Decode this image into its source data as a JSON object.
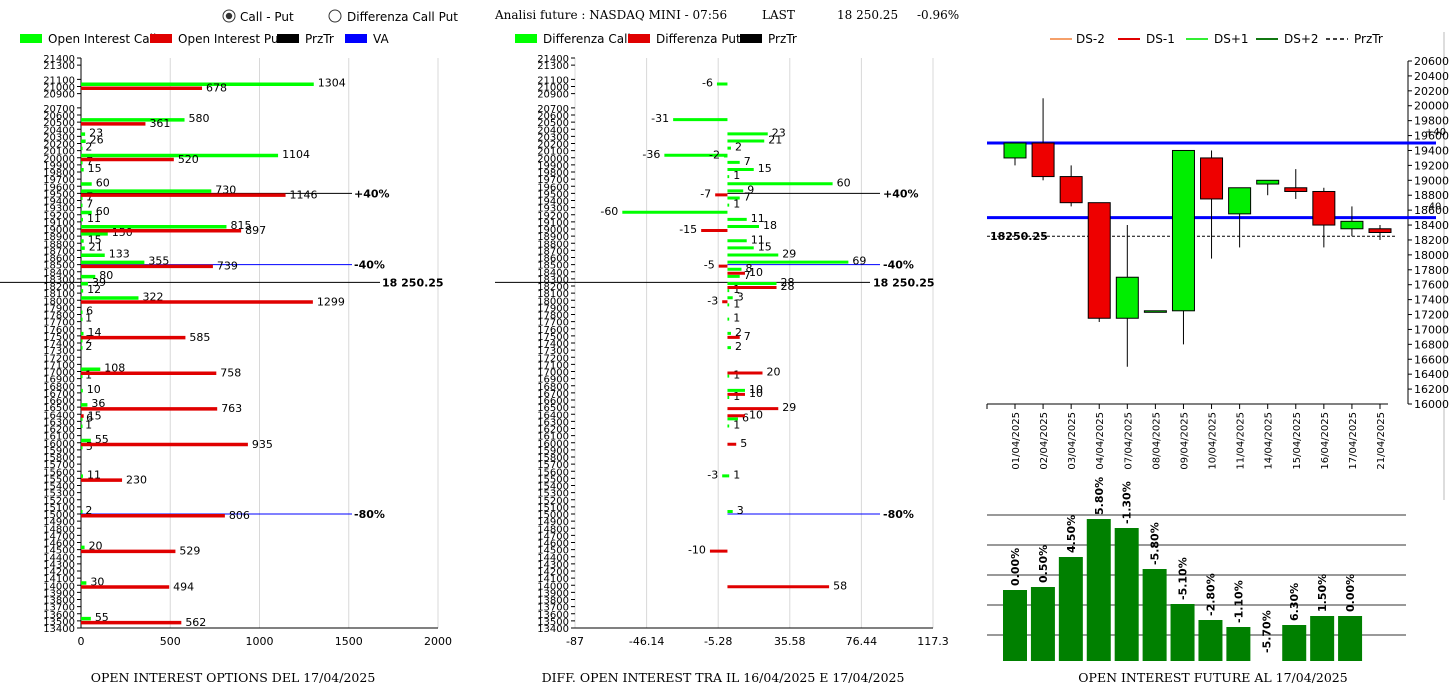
{
  "header": {
    "radio_call_put": "Call - Put",
    "radio_diff": "Differenza Call Put",
    "selected_mode": "Call - Put",
    "analysis_title": "Analisi future : NASDAQ MINI - 07:56",
    "last_label": "LAST",
    "last_value": "18 250.25",
    "last_change": "-0.96%"
  },
  "colors": {
    "call": "#00ff00",
    "put": "#e00000",
    "prztr": "#000000",
    "va": "#0000ff",
    "green_bar": "#008000",
    "ds_minus2": "#f5a06a",
    "ds_minus1": "#e00000",
    "ds_plus1": "#33ee33",
    "ds_plus2": "#117711"
  },
  "panels": [
    {
      "legend": [
        "Open Interest Call",
        "Open Interest Put",
        "PrzTr",
        "VA"
      ],
      "footer": "OPEN INTEREST OPTIONS DEL 17/04/2025"
    },
    {
      "legend": [
        "Differenza Call",
        "Differenza Put",
        "PrzTr"
      ],
      "footer": "DIFF. OPEN INTEREST TRA IL 16/04/2025 E 17/04/2025"
    },
    {
      "legend": [
        "DS-2",
        "DS-1",
        "DS+1",
        "DS+2",
        "PrzTr"
      ],
      "footer": "OPEN INTEREST FUTURE AL 17/04/2025"
    }
  ],
  "chart_data": [
    {
      "type": "bar",
      "orientation": "horizontal",
      "strike_ticks": [
        21400,
        21300,
        21100,
        21000,
        20900,
        20700,
        20600,
        20500,
        20400,
        20300,
        20200,
        20100,
        20000,
        19900,
        19800,
        19700,
        19600,
        19500,
        19400,
        19300,
        19200,
        19100,
        19000,
        18900,
        18800,
        18700,
        18600,
        18500,
        18400,
        18300,
        18200,
        18100,
        18000,
        17900,
        17800,
        17700,
        17600,
        17500,
        17400,
        17300,
        17200,
        17100,
        17000,
        16900,
        16800,
        16700,
        16600,
        16500,
        16400,
        16300,
        16200,
        16100,
        16000,
        15900,
        15800,
        15700,
        15600,
        15500,
        15400,
        15300,
        15200,
        15100,
        15000,
        14900,
        14800,
        14700,
        14600,
        14500,
        14400,
        14300,
        14200,
        14100,
        14000,
        13900,
        13800,
        13700,
        13600,
        13500,
        13400
      ],
      "xticks": [
        0,
        500,
        1000,
        1500,
        2000
      ],
      "xlim": [
        0,
        2000
      ],
      "series": [
        {
          "name": "Open Interest Call",
          "color": "#00ff00",
          "points": [
            [
              21000,
              1304
            ],
            [
              20500,
              580
            ],
            [
              20300,
              23
            ],
            [
              20200,
              26
            ],
            [
              20100,
              2
            ],
            [
              20000,
              1104
            ],
            [
              19900,
              7
            ],
            [
              19800,
              15
            ],
            [
              19600,
              60
            ],
            [
              19500,
              730
            ],
            [
              19400,
              7
            ],
            [
              19300,
              7
            ],
            [
              19200,
              60
            ],
            [
              19100,
              11
            ],
            [
              19000,
              815
            ],
            [
              18900,
              150
            ],
            [
              18800,
              15
            ],
            [
              18700,
              21
            ],
            [
              18600,
              133
            ],
            [
              18500,
              355
            ],
            [
              18300,
              80
            ],
            [
              18200,
              39
            ],
            [
              18100,
              12
            ],
            [
              18000,
              322
            ],
            [
              17800,
              6
            ],
            [
              17700,
              1
            ],
            [
              17500,
              14
            ],
            [
              17400,
              2
            ],
            [
              17300,
              2
            ],
            [
              17000,
              108
            ],
            [
              16900,
              1
            ],
            [
              16700,
              10
            ],
            [
              16500,
              36
            ],
            [
              16300,
              6
            ],
            [
              16200,
              1
            ],
            [
              16000,
              55
            ],
            [
              15900,
              5
            ],
            [
              15500,
              11
            ],
            [
              15000,
              2
            ],
            [
              14500,
              20
            ],
            [
              14000,
              30
            ],
            [
              13500,
              55
            ]
          ]
        },
        {
          "name": "Open Interest Put",
          "color": "#e00000",
          "points": [
            [
              21000,
              678
            ],
            [
              20500,
              361
            ],
            [
              20000,
              520
            ],
            [
              19500,
              1146
            ],
            [
              19000,
              897
            ],
            [
              18500,
              739
            ],
            [
              18000,
              1299
            ],
            [
              17500,
              585
            ],
            [
              17000,
              758
            ],
            [
              16500,
              763
            ],
            [
              16400,
              15
            ],
            [
              16000,
              935
            ],
            [
              15500,
              230
            ],
            [
              15000,
              806
            ],
            [
              14500,
              529
            ],
            [
              14000,
              494
            ],
            [
              13500,
              562
            ]
          ]
        }
      ],
      "lines": [
        {
          "strike": 19500,
          "label": "+40%",
          "color": "#000000"
        },
        {
          "strike": 18500,
          "label": "-40%",
          "color": "#0000ff"
        },
        {
          "strike": 18250.25,
          "label": "18 250.25",
          "color": "#000000"
        },
        {
          "strike": 15000,
          "label": "-80%",
          "color": "#0000ff"
        }
      ]
    },
    {
      "type": "bar",
      "orientation": "horizontal",
      "strike_ticks": [
        21400,
        21300,
        21100,
        21000,
        20900,
        20700,
        20600,
        20500,
        20400,
        20300,
        20200,
        20100,
        20000,
        19900,
        19800,
        19700,
        19600,
        19500,
        19400,
        19300,
        19200,
        19100,
        19000,
        18900,
        18800,
        18700,
        18600,
        18500,
        18400,
        18300,
        18200,
        18100,
        18000,
        17900,
        17800,
        17700,
        17600,
        17500,
        17400,
        17300,
        17200,
        17100,
        17000,
        16900,
        16800,
        16700,
        16600,
        16500,
        16400,
        16300,
        16200,
        16100,
        16000,
        15900,
        15800,
        15700,
        15600,
        15500,
        15400,
        15300,
        15200,
        15100,
        15000,
        14900,
        14800,
        14700,
        14600,
        14500,
        14400,
        14300,
        14200,
        14100,
        14000,
        13900,
        13800,
        13700,
        13600,
        13500,
        13400
      ],
      "xticks": [
        -87,
        -46.14,
        -5.28,
        35.58,
        76.44,
        117.3
      ],
      "xlim": [
        -87,
        117.3
      ],
      "series": [
        {
          "name": "Differenza Call",
          "color": "#00ff00",
          "points": [
            [
              21000,
              -6
            ],
            [
              20500,
              -31
            ],
            [
              20300,
              23
            ],
            [
              20200,
              21
            ],
            [
              20100,
              2
            ],
            [
              20000,
              -36
            ],
            [
              19990,
              -2
            ],
            [
              19900,
              7
            ],
            [
              19800,
              15
            ],
            [
              19700,
              1
            ],
            [
              19600,
              60
            ],
            [
              19500,
              9
            ],
            [
              19400,
              7
            ],
            [
              19300,
              1
            ],
            [
              19200,
              -60
            ],
            [
              19100,
              11
            ],
            [
              19000,
              18
            ],
            [
              18800,
              11
            ],
            [
              18700,
              15
            ],
            [
              18600,
              29
            ],
            [
              18500,
              69
            ],
            [
              18400,
              8
            ],
            [
              18300,
              7
            ],
            [
              18200,
              28
            ],
            [
              18100,
              1
            ],
            [
              18000,
              3
            ],
            [
              17900,
              1
            ],
            [
              17700,
              1
            ],
            [
              17500,
              2
            ],
            [
              17300,
              2
            ],
            [
              16900,
              1
            ],
            [
              16700,
              10
            ],
            [
              16600,
              1
            ],
            [
              16300,
              6
            ],
            [
              16200,
              1
            ],
            [
              15500,
              -3
            ],
            [
              15500,
              1
            ],
            [
              15000,
              3
            ]
          ]
        },
        {
          "name": "Differenza Put",
          "color": "#e00000",
          "points": [
            [
              19500,
              -7
            ],
            [
              19000,
              -15
            ],
            [
              18500,
              -5
            ],
            [
              18400,
              10
            ],
            [
              18200,
              28
            ],
            [
              18000,
              -3
            ],
            [
              17500,
              7
            ],
            [
              17000,
              20
            ],
            [
              16700,
              10
            ],
            [
              16500,
              29
            ],
            [
              16400,
              10
            ],
            [
              16000,
              5
            ],
            [
              14500,
              -10
            ],
            [
              14000,
              58
            ]
          ]
        }
      ],
      "lines": [
        {
          "strike": 19500,
          "label": "+40%",
          "color": "#000000"
        },
        {
          "strike": 18500,
          "label": "-40%",
          "color": "#0000ff"
        },
        {
          "strike": 18250.25,
          "label": "18 250.25",
          "color": "#000000"
        },
        {
          "strike": 15000,
          "label": "-80%",
          "color": "#0000ff"
        }
      ]
    },
    {
      "type": "candlestick",
      "categories": [
        "01/04/2025",
        "02/04/2025",
        "03/04/2025",
        "04/04/2025",
        "07/04/2025",
        "08/04/2025",
        "09/04/2025",
        "10/04/2025",
        "11/04/2025",
        "14/04/2025",
        "15/04/2025",
        "16/04/2025",
        "17/04/2025",
        "21/04/2025"
      ],
      "ohlc": [
        [
          19300,
          19500,
          19200,
          19500
        ],
        [
          19500,
          20100,
          19000,
          19050
        ],
        [
          19050,
          19200,
          18650,
          18700
        ],
        [
          18700,
          18700,
          17100,
          17150
        ],
        [
          17150,
          18400,
          16500,
          17700
        ],
        [
          17250,
          17250,
          17250,
          17250
        ],
        [
          17250,
          19400,
          16800,
          19400
        ],
        [
          19300,
          19400,
          17950,
          18750
        ],
        [
          18550,
          18900,
          18100,
          18900
        ],
        [
          18950,
          19000,
          18800,
          19000
        ],
        [
          18900,
          19150,
          18750,
          18850
        ],
        [
          18850,
          18900,
          18100,
          18400
        ],
        [
          18350,
          18650,
          18250,
          18450
        ],
        [
          18350,
          18400,
          18200,
          18300
        ]
      ],
      "ylim": [
        16000,
        20600
      ],
      "yticks": [
        20600,
        20400,
        20200,
        20000,
        19800,
        19600,
        19400,
        19200,
        19000,
        18800,
        18600,
        18400,
        18200,
        18000,
        17800,
        17600,
        17400,
        17200,
        17000,
        16800,
        16600,
        16400,
        16200,
        16000
      ],
      "hlines": [
        {
          "value": 19500,
          "label": "+40",
          "color": "#0000ff"
        },
        {
          "value": 18500,
          "label": "-40",
          "color": "#0000ff"
        },
        {
          "value": 18250.25,
          "label": "18250.25",
          "color": "#000000"
        }
      ]
    },
    {
      "type": "bar",
      "categories": [
        "01/04/2025",
        "02/04/2025",
        "03/04/2025",
        "04/04/2025",
        "07/04/2025",
        "08/04/2025",
        "09/04/2025",
        "10/04/2025",
        "11/04/2025",
        "14/04/2025",
        "15/04/2025",
        "16/04/2025",
        "17/04/2025",
        "21/04/2025"
      ],
      "labels": [
        "0.00%",
        "0.50%",
        "4.50%",
        "5.80%",
        "-1.30%",
        "-5.80%",
        "-5.10%",
        "-2.80%",
        "-1.10%",
        "-5.70%",
        "6.30%",
        "1.50%",
        "0.00%"
      ],
      "values": [
        0.0,
        0.5,
        4.5,
        5.8,
        -1.3,
        -5.8,
        -5.1,
        -2.8,
        -1.1,
        -5.7,
        6.3,
        1.5,
        0.0
      ],
      "bar_levels": [
        71,
        74,
        104,
        142,
        133,
        92,
        57,
        41,
        34,
        0,
        36,
        45,
        45
      ]
    }
  ]
}
